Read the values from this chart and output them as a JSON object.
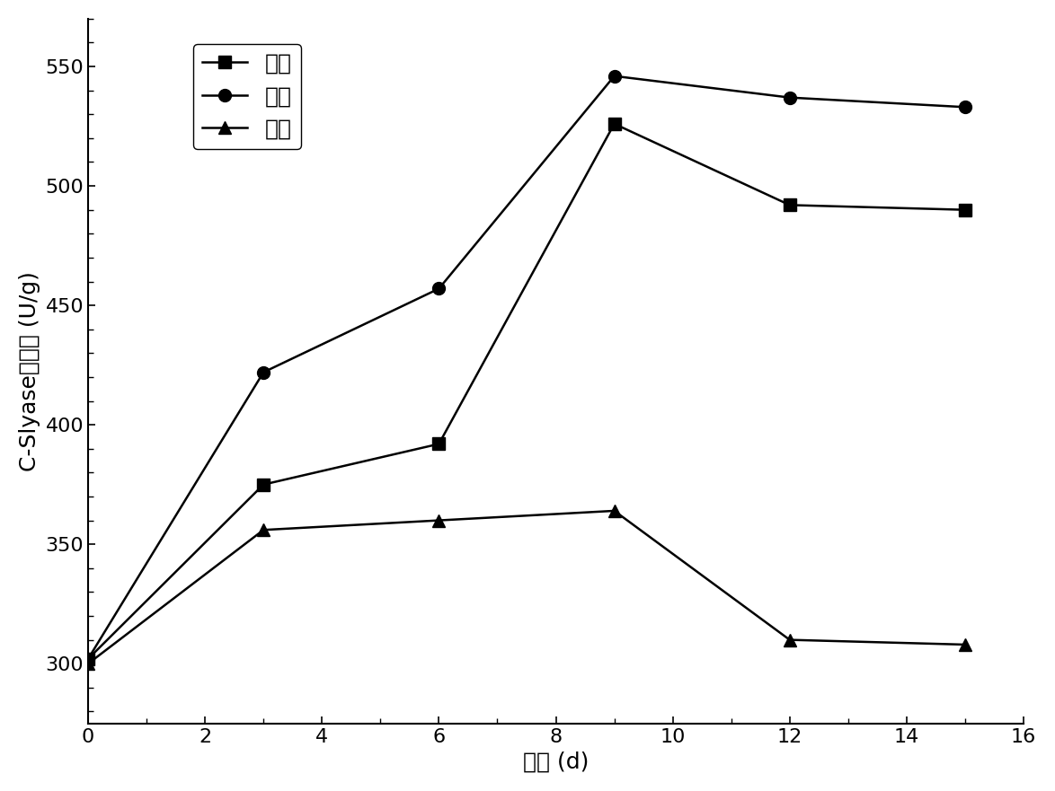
{
  "x": [
    0,
    3,
    6,
    9,
    12,
    15
  ],
  "nano": [
    302,
    375,
    392,
    526,
    492,
    490
  ],
  "normal": [
    302,
    422,
    457,
    546,
    537,
    533
  ],
  "open": [
    300,
    356,
    360,
    364,
    310,
    308
  ],
  "xlabel": "时间 (d)",
  "ylabel": "C-Slyase比活力 (U/g)",
  "xlim": [
    0,
    16
  ],
  "ylim": [
    275,
    570
  ],
  "xticks": [
    0,
    2,
    4,
    6,
    8,
    10,
    12,
    14,
    16
  ],
  "yticks": [
    300,
    350,
    400,
    450,
    500,
    550
  ],
  "legend_nano": "纳米",
  "legend_normal": "普通",
  "legend_open": "开口",
  "line_color": "#000000",
  "marker_square": "s",
  "marker_circle": "o",
  "marker_triangle": "^",
  "markersize": 10,
  "linewidth": 1.8
}
